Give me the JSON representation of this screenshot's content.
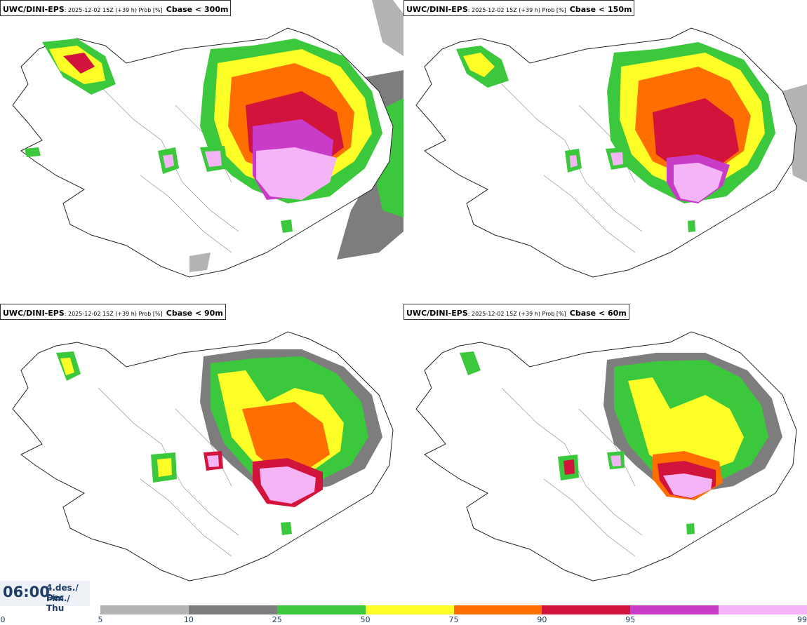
{
  "panels": [
    {
      "model": "UWC/DINI-EPS",
      "meta": ": 2025-12-02 15Z (+39 h) Prob [%]",
      "variable": "Cbase < 300m"
    },
    {
      "model": "UWC/DINI-EPS",
      "meta": ": 2025-12-02 15Z (+39 h) Prob [%]",
      "variable": "Cbase < 150m"
    },
    {
      "model": "UWC/DINI-EPS",
      "meta": ": 2025-12-02 15Z (+39 h) Prob [%]",
      "variable": "Cbase < 90m"
    },
    {
      "model": "UWC/DINI-EPS",
      "meta": ": 2025-12-02 15Z (+39 h) Prob [%]",
      "variable": "Cbase < 60m"
    }
  ],
  "valid_time": {
    "time": "06:00",
    "date_line1": "4.des./ Dec",
    "date_line2": "Fim./ Thu"
  },
  "colorbar": {
    "ticks": [
      "0",
      "5",
      "10",
      "25",
      "50",
      "75",
      "90",
      "95",
      "99"
    ],
    "colors": [
      "#b4b4b4",
      "#7d7d7d",
      "#3cc83c",
      "#ffff28",
      "#ff6e00",
      "#d2143c",
      "#c83cc8",
      "#f5b4f5"
    ]
  }
}
